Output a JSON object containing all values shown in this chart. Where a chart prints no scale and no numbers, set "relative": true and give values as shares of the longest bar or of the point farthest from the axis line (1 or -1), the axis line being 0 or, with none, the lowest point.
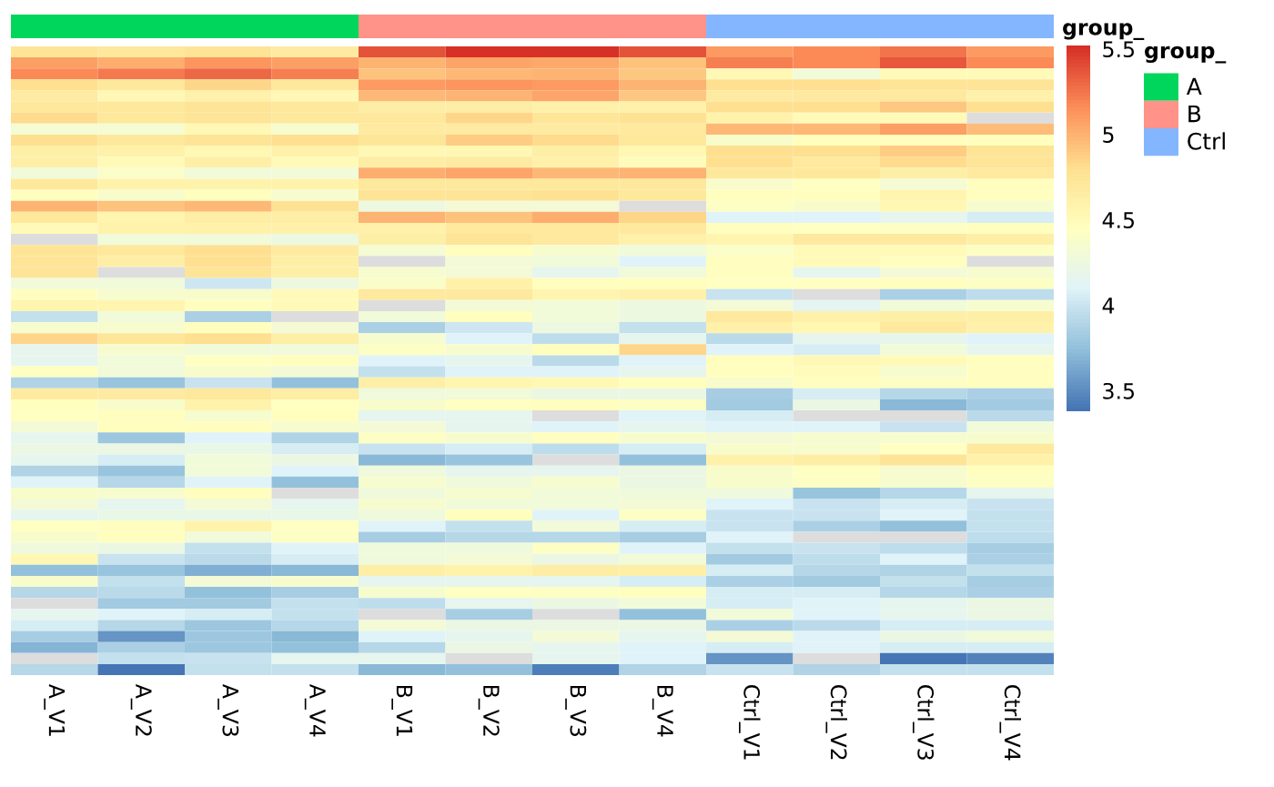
{
  "chart_data": [
    {
      "type": "bar",
      "stacked": true,
      "relative": true,
      "categories": [
        null,
        null,
        null
      ],
      "series": [
        {
          "name": "A",
          "color": "#00d65b",
          "values": [
            1,
            null,
            null
          ]
        },
        {
          "name": "B",
          "color": "#ff9289",
          "values": [
            null,
            1,
            null
          ]
        },
        {
          "name": "Ctrl",
          "color": "#84b6ff",
          "values": [
            null,
            null,
            1
          ]
        }
      ],
      "legend": "right",
      "legend_title": "group_"
    },
    {
      "type": "heatmap",
      "categories": [
        "A_V1",
        "A_V2",
        "A_V3",
        "A_V4",
        "B_V1",
        "B_V2",
        "B_V3",
        "B_V4",
        "Ctrl_V1",
        "Ctrl_V2",
        "Ctrl_V3",
        "Ctrl_V4"
      ],
      "y_categories": [
        null,
        null,
        null,
        null,
        null,
        null,
        null,
        null,
        null,
        null,
        null,
        null,
        null,
        null,
        null,
        null,
        null,
        null,
        null,
        null,
        null,
        null,
        null,
        null,
        null,
        null,
        null,
        null,
        null,
        null,
        null,
        null,
        null,
        null,
        null,
        null,
        null,
        null,
        null,
        null,
        null,
        null,
        null,
        null,
        null,
        null,
        null,
        null,
        null,
        null,
        null,
        null,
        null,
        null,
        null,
        null,
        null
      ],
      "cells": [
        [
          4.75,
          4.72,
          4.76,
          4.68,
          5.38,
          5.5,
          5.52,
          5.38,
          5.1,
          5.16,
          5.25,
          5.1
        ],
        [
          5.08,
          5.02,
          5.13,
          5.08,
          5.0,
          5.07,
          5.04,
          4.93,
          5.22,
          5.17,
          5.37,
          5.17
        ],
        [
          5.16,
          5.23,
          5.3,
          5.22,
          4.94,
          4.98,
          5.0,
          4.92,
          4.52,
          4.28,
          4.5,
          4.5
        ],
        [
          4.8,
          4.72,
          4.85,
          4.72,
          5.1,
          5.13,
          5.11,
          5.0,
          4.8,
          4.8,
          4.77,
          4.77
        ],
        [
          4.67,
          4.53,
          4.6,
          4.53,
          4.97,
          5.0,
          5.07,
          4.92,
          4.67,
          4.7,
          4.7,
          4.6
        ],
        [
          4.72,
          4.71,
          4.75,
          4.71,
          4.65,
          4.65,
          4.62,
          4.62,
          4.8,
          4.8,
          4.92,
          4.8
        ],
        [
          4.82,
          4.71,
          4.75,
          4.71,
          4.72,
          4.85,
          4.73,
          4.78,
          4.58,
          4.5,
          4.5,
          null
        ],
        [
          4.33,
          4.33,
          4.53,
          4.35,
          4.67,
          4.67,
          4.67,
          4.7,
          4.97,
          4.97,
          5.08,
          4.95
        ],
        [
          4.81,
          4.71,
          4.77,
          4.81,
          4.74,
          4.88,
          4.82,
          4.72,
          4.38,
          4.46,
          4.45,
          4.46
        ],
        [
          4.63,
          4.6,
          4.53,
          4.6,
          4.52,
          4.55,
          4.63,
          4.55,
          4.8,
          4.8,
          4.88,
          4.77
        ],
        [
          4.63,
          4.5,
          4.63,
          4.5,
          4.65,
          4.67,
          4.6,
          4.49,
          4.8,
          4.7,
          4.83,
          4.76
        ],
        [
          4.28,
          4.4,
          4.28,
          4.28,
          5.02,
          5.05,
          4.97,
          4.99,
          4.71,
          4.71,
          4.63,
          4.69
        ],
        [
          4.71,
          4.58,
          4.58,
          4.58,
          4.72,
          4.72,
          4.72,
          4.72,
          4.38,
          4.43,
          4.33,
          4.46
        ],
        [
          4.45,
          4.38,
          4.45,
          4.36,
          4.76,
          4.76,
          4.78,
          4.72,
          4.46,
          4.46,
          4.56,
          4.46
        ],
        [
          5.0,
          4.94,
          4.97,
          4.79,
          4.25,
          4.32,
          4.32,
          null,
          4.41,
          4.37,
          4.55,
          4.35
        ],
        [
          4.71,
          4.57,
          4.66,
          4.66,
          5.0,
          4.94,
          5.01,
          4.85,
          4.1,
          4.1,
          4.17,
          4.06
        ],
        [
          4.5,
          4.58,
          4.6,
          4.6,
          4.6,
          4.7,
          4.7,
          4.7,
          4.46,
          4.43,
          4.42,
          4.46
        ],
        [
          null,
          4.28,
          4.28,
          4.24,
          4.63,
          4.76,
          4.7,
          4.6,
          4.57,
          4.69,
          4.69,
          4.63
        ],
        [
          4.77,
          4.71,
          4.8,
          4.68,
          4.34,
          4.47,
          4.35,
          4.3,
          4.4,
          4.51,
          4.51,
          4.42
        ],
        [
          4.77,
          4.66,
          4.8,
          4.63,
          null,
          4.32,
          4.28,
          4.1,
          4.46,
          4.51,
          4.46,
          null
        ],
        [
          4.76,
          null,
          4.77,
          4.63,
          4.35,
          4.32,
          4.17,
          4.28,
          4.46,
          4.17,
          4.32,
          4.35
        ],
        [
          4.28,
          4.28,
          4.02,
          4.24,
          4.39,
          4.6,
          4.45,
          4.45,
          4.44,
          4.44,
          4.46,
          4.42
        ],
        [
          4.45,
          4.35,
          4.38,
          4.5,
          4.7,
          4.7,
          4.56,
          4.6,
          4.0,
          null,
          3.86,
          3.94
        ],
        [
          4.56,
          4.57,
          4.45,
          4.5,
          null,
          4.32,
          4.28,
          4.24,
          4.32,
          4.14,
          4.28,
          4.35
        ],
        [
          3.96,
          4.28,
          3.86,
          null,
          4.28,
          4.45,
          4.28,
          4.24,
          4.7,
          4.6,
          4.63,
          4.63
        ],
        [
          4.35,
          4.35,
          4.46,
          4.32,
          3.87,
          4.02,
          4.24,
          3.97,
          4.6,
          4.55,
          4.7,
          4.6
        ],
        [
          4.84,
          4.73,
          4.8,
          4.63,
          4.35,
          4.1,
          3.94,
          4.17,
          3.92,
          4.17,
          4.17,
          4.1
        ],
        [
          4.17,
          4.35,
          4.28,
          4.28,
          4.41,
          4.35,
          4.45,
          4.84,
          4.1,
          4.05,
          4.28,
          4.17
        ],
        [
          4.17,
          4.28,
          4.44,
          4.45,
          4.09,
          4.17,
          3.93,
          4.09,
          4.45,
          4.52,
          4.5,
          4.45
        ],
        [
          4.44,
          4.28,
          4.38,
          4.32,
          3.97,
          4.09,
          4.09,
          4.17,
          4.45,
          4.48,
          4.35,
          4.45
        ],
        [
          3.88,
          3.78,
          3.99,
          3.76,
          4.63,
          4.56,
          4.52,
          4.47,
          4.38,
          4.45,
          4.41,
          4.45
        ],
        [
          4.68,
          4.68,
          4.72,
          4.65,
          4.27,
          4.29,
          4.23,
          4.23,
          3.85,
          4.05,
          3.91,
          3.87
        ],
        [
          4.45,
          4.38,
          4.58,
          4.44,
          4.38,
          4.44,
          4.45,
          4.41,
          3.82,
          4.23,
          3.72,
          3.81
        ],
        [
          4.44,
          4.45,
          4.36,
          4.45,
          4.17,
          4.17,
          null,
          4.09,
          4.06,
          null,
          null,
          3.93
        ],
        [
          4.32,
          4.45,
          4.45,
          4.36,
          4.32,
          4.17,
          4.09,
          4.17,
          4.09,
          4.09,
          4.0,
          4.29
        ],
        [
          4.17,
          3.8,
          4.09,
          3.89,
          4.41,
          4.35,
          4.46,
          4.35,
          4.32,
          4.35,
          4.35,
          4.35
        ],
        [
          4.23,
          4.23,
          4.2,
          4.06,
          4.0,
          4.06,
          3.94,
          4.06,
          4.38,
          4.35,
          4.44,
          4.7
        ],
        [
          4.17,
          4.06,
          4.29,
          4.23,
          3.72,
          3.78,
          null,
          3.76,
          4.6,
          4.66,
          4.76,
          4.6
        ],
        [
          3.89,
          3.78,
          4.29,
          4.09,
          4.27,
          4.17,
          4.17,
          4.23,
          4.38,
          4.44,
          4.36,
          4.46
        ],
        [
          4.09,
          3.91,
          4.09,
          3.75,
          4.36,
          4.27,
          4.36,
          4.23,
          4.38,
          4.42,
          4.36,
          4.41
        ],
        [
          4.38,
          4.36,
          4.45,
          null,
          4.27,
          4.36,
          4.29,
          4.27,
          4.27,
          3.78,
          3.91,
          4.17
        ],
        [
          4.32,
          4.17,
          4.32,
          4.17,
          4.36,
          4.29,
          4.29,
          4.32,
          4.09,
          4.0,
          4.05,
          4.0
        ],
        [
          4.17,
          4.2,
          4.2,
          4.2,
          4.27,
          4.45,
          4.09,
          4.41,
          4.0,
          4.0,
          4.09,
          3.97
        ],
        [
          4.44,
          4.45,
          4.58,
          4.44,
          4.09,
          3.97,
          4.28,
          4.06,
          4.0,
          3.87,
          3.76,
          3.97
        ],
        [
          4.38,
          4.45,
          4.29,
          4.41,
          3.83,
          3.91,
          3.91,
          3.83,
          4.09,
          null,
          null,
          3.94
        ],
        [
          4.27,
          4.23,
          3.97,
          4.09,
          4.27,
          4.27,
          4.41,
          4.09,
          3.97,
          4.0,
          3.94,
          3.85
        ],
        [
          4.55,
          4.0,
          3.93,
          4.06,
          4.27,
          4.32,
          4.23,
          4.29,
          3.82,
          3.94,
          4.09,
          3.87
        ],
        [
          3.76,
          3.78,
          3.67,
          3.71,
          4.63,
          4.58,
          4.66,
          4.63,
          4.06,
          3.91,
          3.89,
          3.97
        ],
        [
          4.38,
          3.97,
          4.32,
          4.36,
          4.17,
          4.17,
          4.17,
          4.06,
          3.87,
          3.81,
          3.97,
          3.85
        ],
        [
          3.9,
          3.93,
          3.75,
          3.83,
          4.36,
          4.44,
          4.41,
          4.46,
          4.06,
          4.06,
          3.91,
          3.87
        ],
        [
          null,
          3.82,
          3.82,
          3.96,
          3.94,
          4.17,
          4.23,
          4.29,
          4.06,
          4.09,
          4.17,
          4.23
        ],
        [
          4.16,
          4.09,
          4.06,
          3.96,
          null,
          3.83,
          null,
          3.75,
          4.29,
          4.09,
          4.17,
          4.23
        ],
        [
          4.06,
          3.91,
          3.8,
          3.91,
          4.32,
          4.23,
          4.23,
          4.23,
          3.86,
          3.93,
          4.05,
          4.05
        ],
        [
          3.85,
          3.55,
          3.8,
          3.71,
          4.09,
          4.17,
          4.32,
          4.17,
          4.32,
          4.09,
          4.23,
          4.29
        ],
        [
          3.68,
          3.87,
          3.8,
          3.75,
          3.91,
          4.23,
          4.17,
          4.09,
          4.05,
          4.09,
          4.06,
          4.06
        ],
        [
          null,
          3.97,
          4.0,
          4.17,
          4.17,
          null,
          4.17,
          4.09,
          3.53,
          null,
          3.38,
          3.45
        ],
        [
          3.91,
          3.39,
          3.96,
          3.97,
          3.71,
          3.75,
          3.44,
          3.89,
          4.0,
          3.89,
          3.97,
          3.97
        ]
      ],
      "clim": [
        3.38,
        5.52
      ],
      "cticks": [
        3.5,
        4,
        4.5,
        5,
        5.5
      ],
      "clabel": "group_",
      "tick_labels": "x"
    }
  ]
}
